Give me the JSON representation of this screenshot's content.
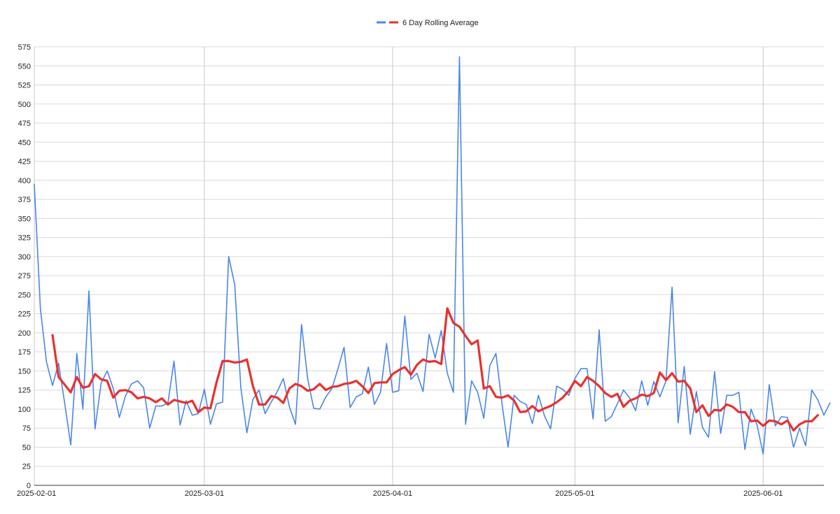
{
  "chart_data": {
    "type": "line",
    "title": "",
    "xlabel": "",
    "ylabel": "",
    "x_start": "2025-02-01",
    "x_end": "2025-06-11",
    "xticks": [
      "2025-02-01",
      "2025-03-01",
      "2025-04-01",
      "2025-05-01",
      "2025-06-01"
    ],
    "ylim": [
      0,
      575
    ],
    "yticks": [
      0,
      25,
      50,
      75,
      100,
      125,
      150,
      175,
      200,
      225,
      250,
      275,
      300,
      325,
      350,
      375,
      400,
      425,
      450,
      475,
      500,
      525,
      550,
      575
    ],
    "grid": true,
    "legend_position": "top-center",
    "series": [
      {
        "name": "",
        "color": "#4a86e8",
        "start": "2025-02-01",
        "values": [
          395,
          232,
          162,
          131,
          160,
          108,
          53,
          173,
          100,
          255,
          74,
          134,
          150,
          127,
          89,
          117,
          133,
          137,
          128,
          75,
          104,
          104,
          108,
          163,
          79,
          111,
          92,
          94,
          126,
          80,
          107,
          109,
          300,
          263,
          128,
          69,
          113,
          125,
          94,
          109,
          123,
          140,
          103,
          80,
          211,
          140,
          101,
          100,
          116,
          127,
          153,
          181,
          102,
          116,
          120,
          155,
          106,
          122,
          186,
          122,
          124,
          222,
          139,
          147,
          123,
          198,
          167,
          203,
          147,
          122,
          562,
          80,
          137,
          122,
          88,
          157,
          173,
          107,
          50,
          118,
          110,
          106,
          81,
          118,
          91,
          74,
          130,
          126,
          118,
          140,
          153,
          153,
          87,
          204,
          84,
          90,
          107,
          125,
          115,
          98,
          137,
          105,
          136,
          116,
          137,
          260,
          82,
          156,
          67,
          123,
          76,
          63,
          149,
          68,
          118,
          118,
          122,
          47,
          100,
          79,
          41,
          132,
          78,
          90,
          89,
          50,
          75,
          52,
          125,
          112,
          92,
          108
        ]
      },
      {
        "name": "6 Day Rolling Average",
        "color": "#e8312f",
        "start": "2025-02-04",
        "values": [
          197,
          142,
          132,
          122,
          142,
          128,
          130,
          146,
          139,
          137,
          115,
          124,
          125,
          122,
          114,
          116,
          114,
          109,
          114,
          106,
          112,
          110,
          108,
          111,
          96,
          102,
          101,
          135,
          163,
          163,
          161,
          162,
          165,
          130,
          106,
          106,
          117,
          115,
          108,
          127,
          133,
          130,
          124,
          126,
          133,
          125,
          129,
          130,
          133,
          134,
          137,
          130,
          121,
          134,
          135,
          135,
          146,
          151,
          155,
          145,
          158,
          165,
          162,
          163,
          159,
          232,
          213,
          208,
          196,
          185,
          190,
          127,
          130,
          116,
          115,
          118,
          111,
          96,
          97,
          104,
          97,
          101,
          104,
          109,
          115,
          124,
          137,
          130,
          142,
          137,
          130,
          121,
          116,
          120,
          103,
          111,
          114,
          119,
          117,
          121,
          148,
          138,
          147,
          136,
          137,
          127,
          96,
          105,
          91,
          99,
          98,
          106,
          103,
          96,
          96,
          84,
          85,
          78,
          85,
          84,
          80,
          85,
          72,
          80,
          84,
          84,
          92
        ]
      }
    ]
  }
}
